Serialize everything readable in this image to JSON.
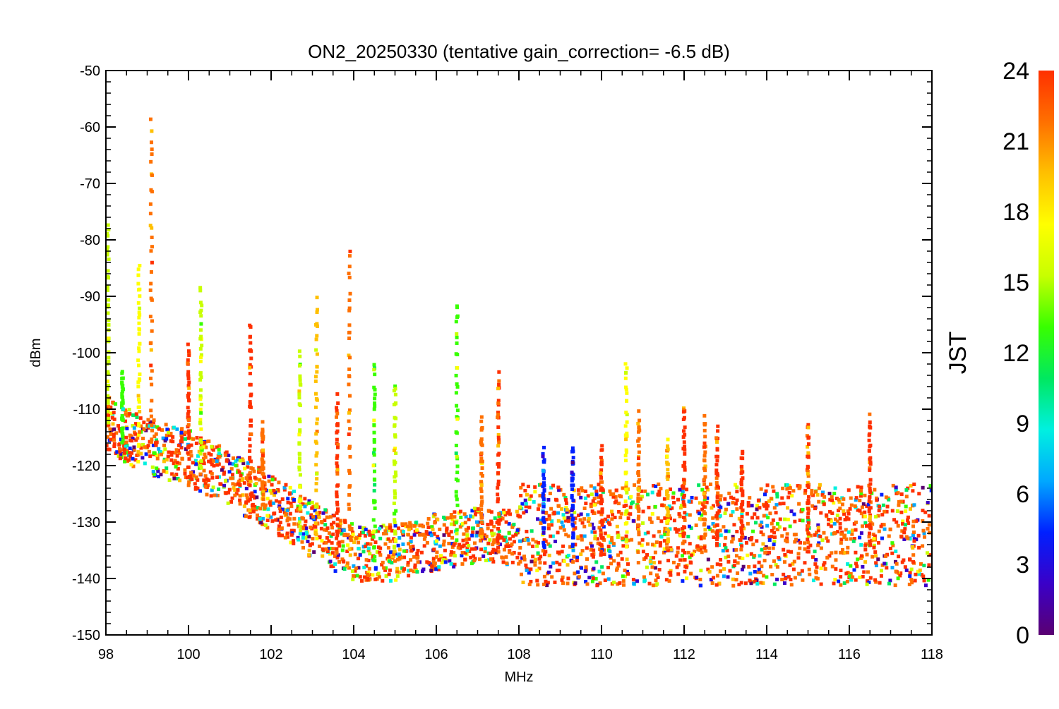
{
  "chart_data": {
    "type": "scatter",
    "title": "ON2_20250330 (tentative gain_correction= -6.5 dB)",
    "xlabel": "MHz",
    "ylabel": "dBm",
    "xlim": [
      98,
      118
    ],
    "ylim": [
      -150,
      -50
    ],
    "x_ticks": [
      "98",
      "100",
      "102",
      "104",
      "106",
      "108",
      "110",
      "112",
      "114",
      "116",
      "118"
    ],
    "y_ticks": [
      "-50",
      "-60",
      "-70",
      "-80",
      "-90",
      "-100",
      "-110",
      "-120",
      "-130",
      "-140",
      "-150"
    ],
    "colorbar": {
      "label": "JST",
      "range": [
        0,
        24
      ],
      "ticks": [
        "0",
        "3",
        "6",
        "9",
        "12",
        "15",
        "18",
        "21",
        "24"
      ],
      "colormap": "rainbow",
      "colors": [
        "#5a0072",
        "#3a00c8",
        "#0020ff",
        "#00a8ff",
        "#00f0e0",
        "#00e860",
        "#38ff00",
        "#c8ff00",
        "#ffff00",
        "#ffc000",
        "#ff7000",
        "#ff3000"
      ]
    },
    "grid": false,
    "series": [
      {
        "description_points": "noise floor band",
        "floor_points": [
          {
            "x": 98.0,
            "y": -114
          },
          {
            "x": 99.0,
            "y": -118
          },
          {
            "x": 100.0,
            "y": -120
          },
          {
            "x": 101.0,
            "y": -124
          },
          {
            "x": 102.0,
            "y": -128
          },
          {
            "x": 103.0,
            "y": -133
          },
          {
            "x": 104.0,
            "y": -137
          },
          {
            "x": 105.0,
            "y": -137
          },
          {
            "x": 106.0,
            "y": -135
          },
          {
            "x": 107.0,
            "y": -134
          },
          {
            "x": 107.9,
            "y": -134
          },
          {
            "x": 108.0,
            "y": -135
          },
          {
            "x": 110.0,
            "y": -135
          },
          {
            "x": 112.0,
            "y": -135
          },
          {
            "x": 114.0,
            "y": -135
          },
          {
            "x": 116.0,
            "y": -135
          },
          {
            "x": 118.0,
            "y": -135
          }
        ],
        "peaks": [
          {
            "x": 98.05,
            "y": -77,
            "jst": 16
          },
          {
            "x": 98.4,
            "y": -104,
            "jst": 12
          },
          {
            "x": 98.8,
            "y": -84,
            "jst": 18
          },
          {
            "x": 99.1,
            "y": -59,
            "jst": 21
          },
          {
            "x": 100.0,
            "y": -99,
            "jst": 23
          },
          {
            "x": 100.3,
            "y": -89,
            "jst": 16
          },
          {
            "x": 101.5,
            "y": -95,
            "jst": 23
          },
          {
            "x": 101.8,
            "y": -113,
            "jst": 22
          },
          {
            "x": 102.7,
            "y": -100,
            "jst": 16
          },
          {
            "x": 103.1,
            "y": -91,
            "jst": 19
          },
          {
            "x": 103.6,
            "y": -108,
            "jst": 23
          },
          {
            "x": 103.9,
            "y": -82,
            "jst": 22
          },
          {
            "x": 104.5,
            "y": -102,
            "jst": 14
          },
          {
            "x": 105.0,
            "y": -105,
            "jst": 16
          },
          {
            "x": 106.5,
            "y": -91,
            "jst": 14
          },
          {
            "x": 107.1,
            "y": -112,
            "jst": 21
          },
          {
            "x": 107.5,
            "y": -104,
            "jst": 23
          },
          {
            "x": 108.6,
            "y": -117,
            "jst": 5
          },
          {
            "x": 109.3,
            "y": -117,
            "jst": 4
          },
          {
            "x": 110.0,
            "y": -117,
            "jst": 23
          },
          {
            "x": 110.6,
            "y": -101,
            "jst": 17
          },
          {
            "x": 110.9,
            "y": -111,
            "jst": 22
          },
          {
            "x": 111.6,
            "y": -116,
            "jst": 19
          },
          {
            "x": 112.0,
            "y": -109,
            "jst": 23
          },
          {
            "x": 112.5,
            "y": -112,
            "jst": 22
          },
          {
            "x": 112.8,
            "y": -114,
            "jst": 23
          },
          {
            "x": 113.4,
            "y": -118,
            "jst": 23
          },
          {
            "x": 115.0,
            "y": -113,
            "jst": 23
          },
          {
            "x": 116.5,
            "y": -111,
            "jst": 23
          }
        ]
      }
    ]
  }
}
